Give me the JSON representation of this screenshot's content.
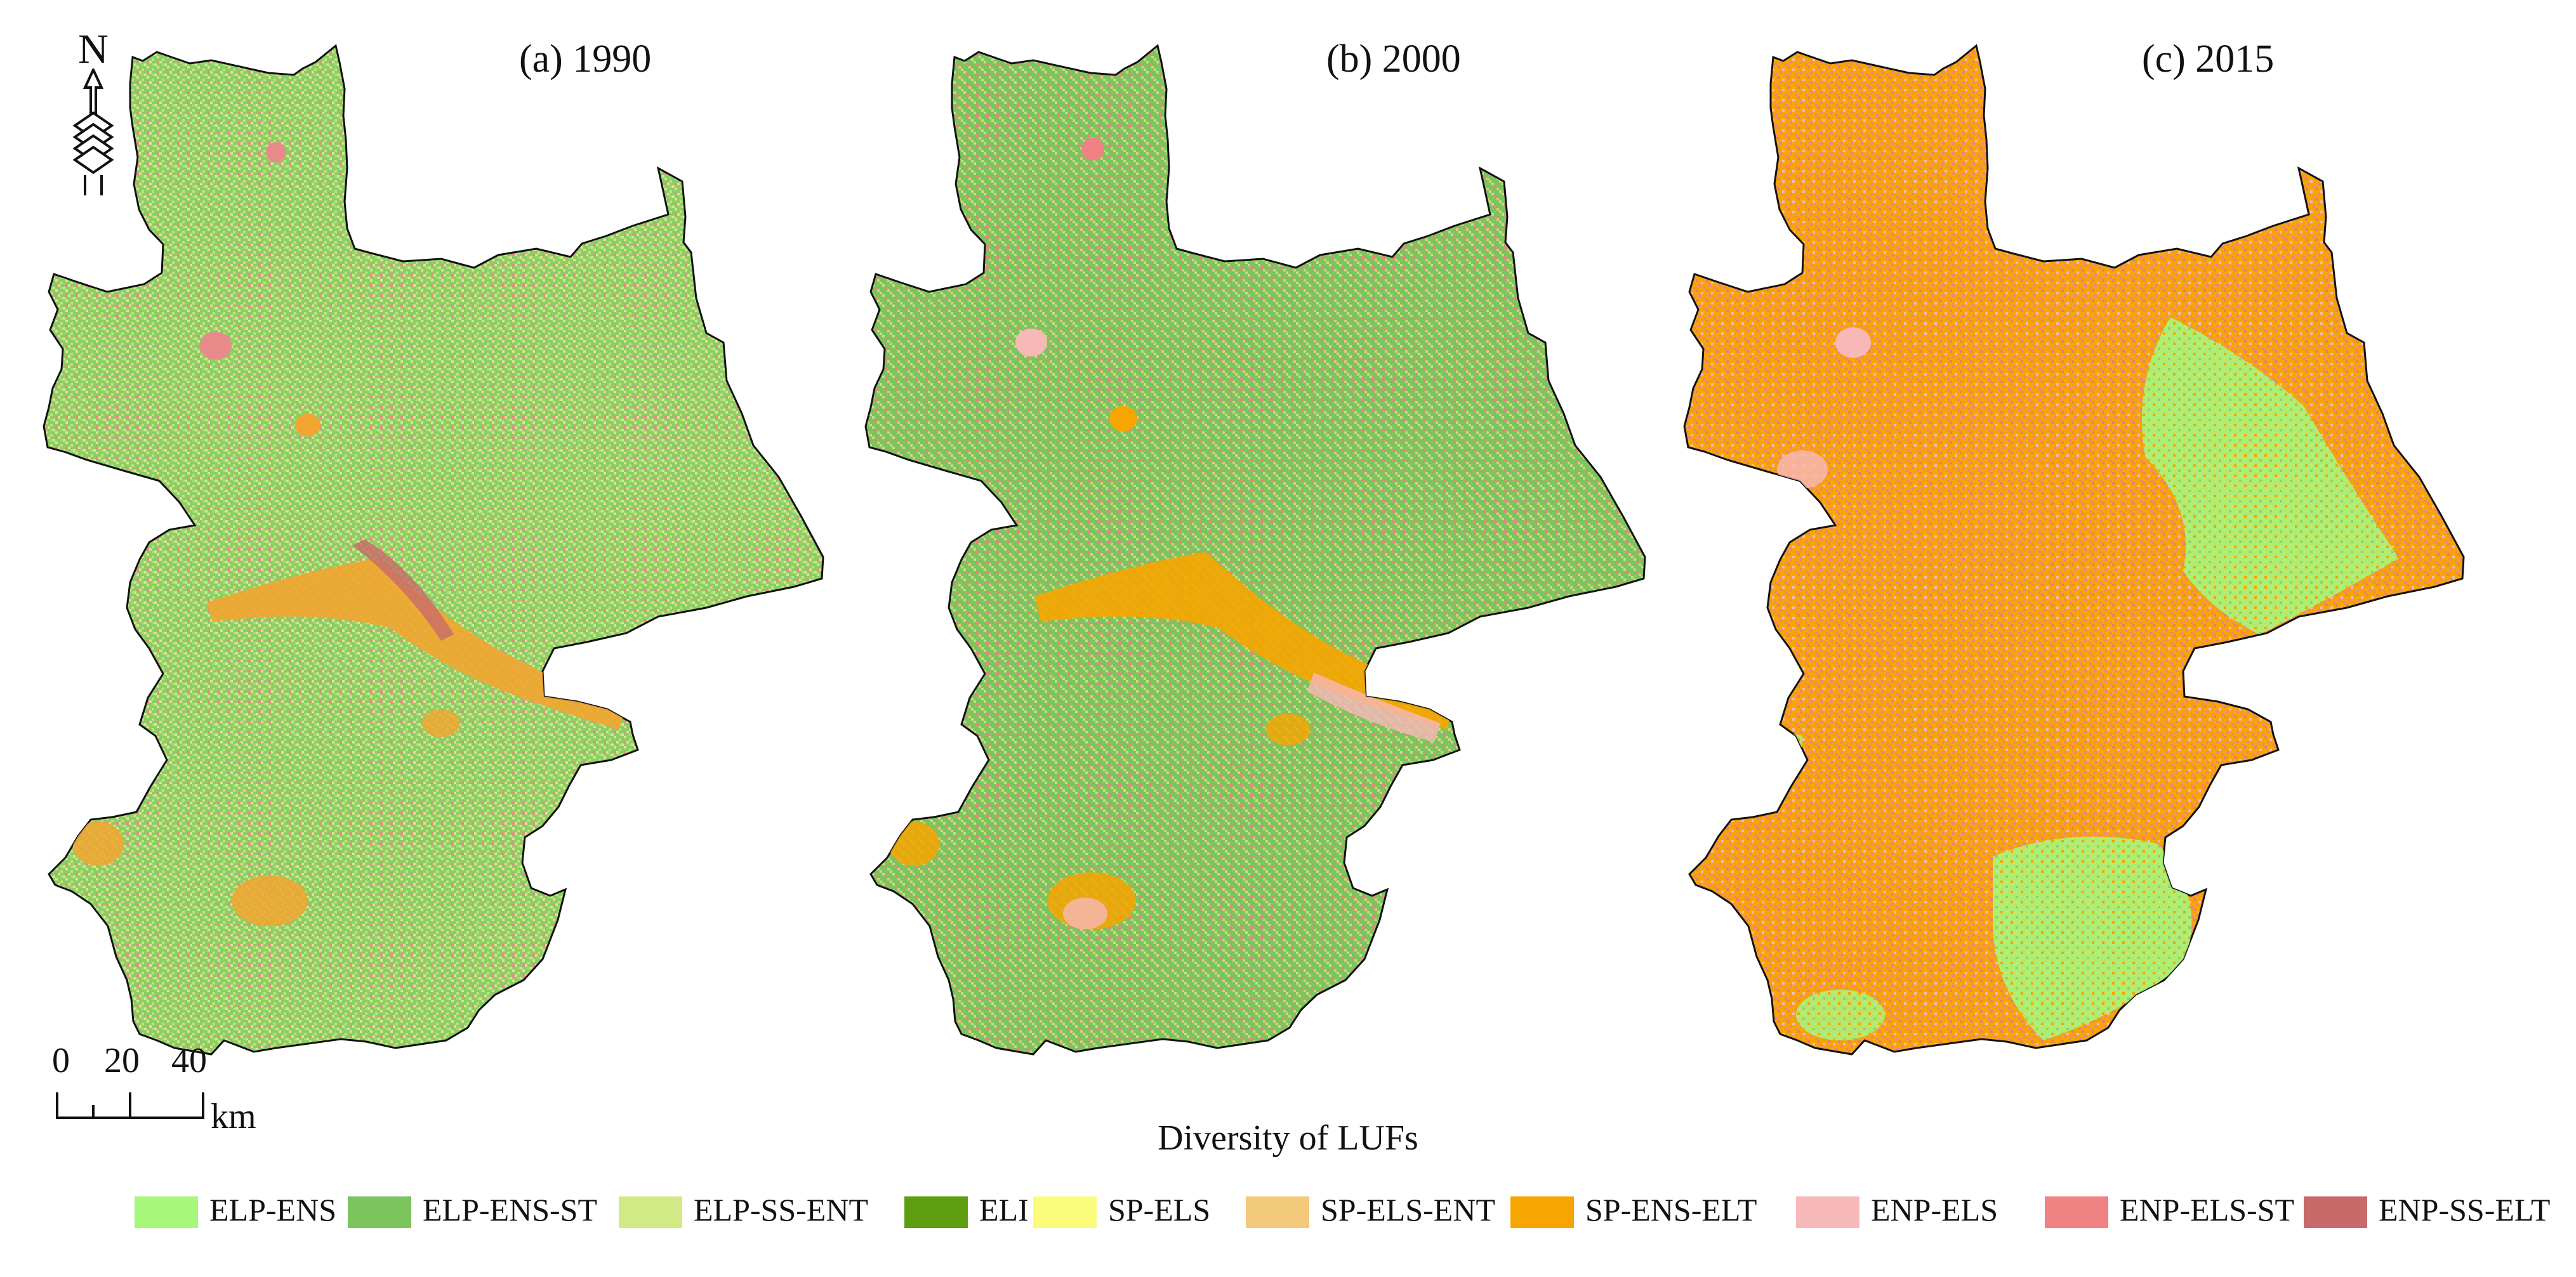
{
  "panels": [
    {
      "title": "(a) 1990",
      "palette": "p1990"
    },
    {
      "title": "(b) 2000",
      "palette": "p2000"
    },
    {
      "title": "(c) 2015",
      "palette": "p2015"
    }
  ],
  "north_arrow": {
    "letter": "N",
    "icon": "north-arrow-icon"
  },
  "scale_bar": {
    "labels": [
      "0",
      "20",
      "40"
    ],
    "unit": "km"
  },
  "legend": {
    "title": "Diversity of LUFs",
    "items": [
      {
        "label": "ELP-ENS",
        "color": "#a6f77a"
      },
      {
        "label": "ELP-ENS-ST",
        "color": "#7cc45e"
      },
      {
        "label": "ELP-SS-ENT",
        "color": "#d2ea86"
      },
      {
        "label": "ELI",
        "color": "#5e9e10"
      },
      {
        "label": "SP-ELS",
        "color": "#fbfb7c"
      },
      {
        "label": "SP-ELS-ENT",
        "color": "#f3ca7c"
      },
      {
        "label": "SP-ENS-ELT",
        "color": "#f7a500"
      },
      {
        "label": "ENP-ELS",
        "color": "#f7b8b8"
      },
      {
        "label": "ENP-ELS-ST",
        "color": "#f08284"
      },
      {
        "label": "ENP-SS-ELT",
        "color": "#c96a6a"
      }
    ]
  }
}
